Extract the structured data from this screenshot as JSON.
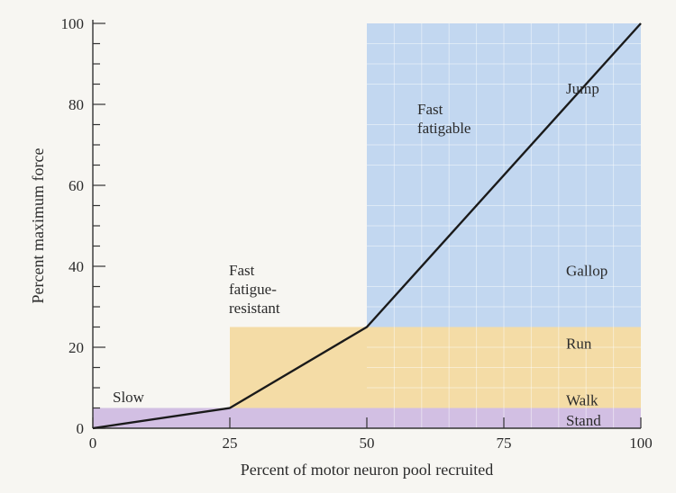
{
  "chart_data": {
    "type": "line",
    "title": "",
    "xlabel": "Percent of motor neuron pool recruited",
    "ylabel": "Percent maximum force",
    "xlim": [
      0,
      100
    ],
    "ylim": [
      0,
      100
    ],
    "x_ticks": [
      0,
      25,
      50,
      75,
      100
    ],
    "y_ticks": [
      0,
      20,
      40,
      60,
      80,
      100
    ],
    "grid": false,
    "series": [
      {
        "x": [
          0,
          25,
          50,
          100
        ],
        "y": [
          0,
          5,
          25,
          100
        ],
        "color": "#1a1a1a"
      }
    ],
    "regions": [
      {
        "label": "Slow",
        "x": [
          0,
          100
        ],
        "y": [
          0,
          5
        ],
        "color": "#d2bfe3"
      },
      {
        "label": "Fast fatigue-resistant",
        "label_lines": [
          "Fast",
          "fatigue-",
          "resistant"
        ],
        "x": [
          25,
          100
        ],
        "y": [
          5,
          25
        ],
        "color": "#f4dca6"
      },
      {
        "label": "Fast fatigable",
        "label_lines": [
          "Fast",
          "fatigable"
        ],
        "x": [
          50,
          100
        ],
        "y": [
          25,
          100
        ],
        "color": "#c2d7f0"
      }
    ],
    "annotations": [
      {
        "text": "Jump",
        "x": 92,
        "y": 84
      },
      {
        "text": "Gallop",
        "x": 92,
        "y": 39
      },
      {
        "text": "Run",
        "x": 92,
        "y": 21
      },
      {
        "text": "Walk",
        "x": 92,
        "y": 7
      },
      {
        "text": "Stand",
        "x": 92,
        "y": 2
      }
    ]
  }
}
